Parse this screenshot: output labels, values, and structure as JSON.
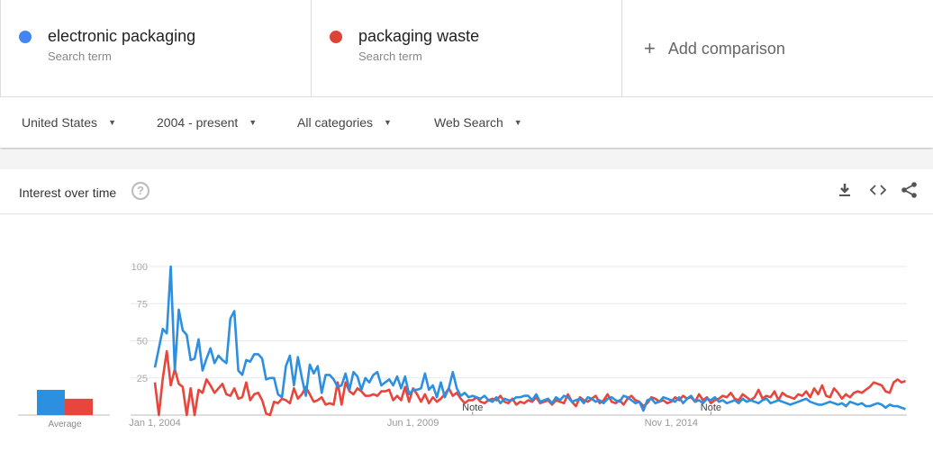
{
  "terms": [
    {
      "name": "electronic packaging",
      "sub": "Search term",
      "color": "#4285f4"
    },
    {
      "name": "packaging waste",
      "sub": "Search term",
      "color": "#db4437"
    }
  ],
  "add_comparison": "Add comparison",
  "filters": {
    "region": "United States",
    "time": "2004 - present",
    "category": "All categories",
    "search_type": "Web Search"
  },
  "card": {
    "title": "Interest over time",
    "help_icon": "question-circle-icon",
    "actions": [
      "download-icon",
      "embed-code-icon",
      "share-icon"
    ]
  },
  "chart_data": {
    "type": "line",
    "title": "Interest over time",
    "x_start": "2004-01",
    "x_end": "2019-10",
    "frequency": "monthly",
    "ylim": [
      0,
      100
    ],
    "yticks": [
      "100",
      "75",
      "50",
      "25"
    ],
    "xtick_labels": [
      "Jan 1, 2004",
      "Jun 1, 2009",
      "Nov 1, 2014"
    ],
    "annotations": [
      "Note",
      "Note"
    ],
    "grid": true,
    "series": [
      {
        "name": "electronic packaging",
        "color": "#2d8fe0",
        "values": [
          32,
          45,
          58,
          55,
          100,
          30,
          71,
          57,
          54,
          37,
          38,
          51,
          30,
          38,
          45,
          35,
          40,
          37,
          35,
          65,
          70,
          30,
          27,
          37,
          36,
          41,
          41,
          38,
          24,
          25,
          25,
          14,
          12,
          33,
          40,
          20,
          39,
          25,
          13,
          34,
          28,
          33,
          15,
          27,
          27,
          24,
          19,
          20,
          28,
          17,
          29,
          26,
          17,
          25,
          22,
          27,
          29,
          20,
          22,
          24,
          20,
          26,
          18,
          26,
          14,
          17,
          17,
          18,
          28,
          17,
          20,
          12,
          22,
          12,
          18,
          29,
          18,
          13,
          15,
          12,
          13,
          12,
          11,
          13,
          10,
          9,
          12,
          8,
          11,
          10,
          10,
          12,
          12,
          13,
          13,
          10,
          14,
          9,
          10,
          11,
          8,
          12,
          10,
          13,
          12,
          9,
          10,
          11,
          8,
          12,
          11,
          9,
          10,
          8,
          11,
          12,
          10,
          9,
          13,
          12,
          10,
          8,
          9,
          3,
          10,
          11,
          8,
          9,
          12,
          11,
          10,
          9,
          12,
          8,
          11,
          13,
          9,
          10,
          8,
          11,
          10,
          12,
          9,
          10,
          8,
          9,
          10,
          8,
          11,
          9,
          10,
          9,
          8,
          10,
          11,
          8,
          9,
          10,
          9,
          8,
          7,
          8,
          9,
          10,
          11,
          9,
          8,
          7,
          7,
          8,
          9,
          8,
          7,
          8,
          6,
          9,
          8,
          7,
          8,
          6,
          6,
          7,
          8,
          7,
          5,
          7,
          6,
          6,
          5,
          4
        ],
        "average": 17
      },
      {
        "name": "packaging waste",
        "color": "#e8453c",
        "values": [
          22,
          0,
          25,
          43,
          20,
          31,
          21,
          19,
          0,
          18,
          0,
          17,
          15,
          24,
          20,
          15,
          18,
          21,
          14,
          13,
          18,
          11,
          12,
          22,
          10,
          14,
          15,
          10,
          1,
          0,
          9,
          8,
          11,
          10,
          8,
          18,
          11,
          14,
          19,
          14,
          9,
          10,
          12,
          7,
          8,
          7,
          22,
          7,
          22,
          16,
          14,
          18,
          16,
          13,
          13,
          14,
          13,
          16,
          16,
          17,
          10,
          13,
          10,
          19,
          9,
          18,
          14,
          9,
          14,
          8,
          12,
          9,
          11,
          14,
          18,
          13,
          15,
          11,
          8,
          10,
          10,
          12,
          9,
          8,
          10,
          11,
          10,
          13,
          9,
          8,
          11,
          7,
          9,
          8,
          10,
          9,
          12,
          8,
          9,
          10,
          7,
          10,
          9,
          8,
          14,
          9,
          6,
          12,
          10,
          9,
          11,
          13,
          8,
          10,
          14,
          9,
          8,
          10,
          7,
          11,
          13,
          10,
          9,
          6,
          8,
          12,
          11,
          9,
          10,
          8,
          9,
          12,
          10,
          13,
          11,
          12,
          9,
          14,
          10,
          12,
          8,
          10,
          11,
          13,
          12,
          15,
          11,
          10,
          14,
          12,
          10,
          12,
          17,
          11,
          13,
          12,
          16,
          10,
          15,
          13,
          12,
          11,
          14,
          13,
          16,
          12,
          18,
          14,
          20,
          13,
          12,
          18,
          15,
          11,
          14,
          12,
          15,
          16,
          15,
          17,
          19,
          22,
          21,
          20,
          16,
          15,
          22,
          24,
          22,
          23
        ],
        "average": 11
      }
    ],
    "average_label": "Average"
  }
}
